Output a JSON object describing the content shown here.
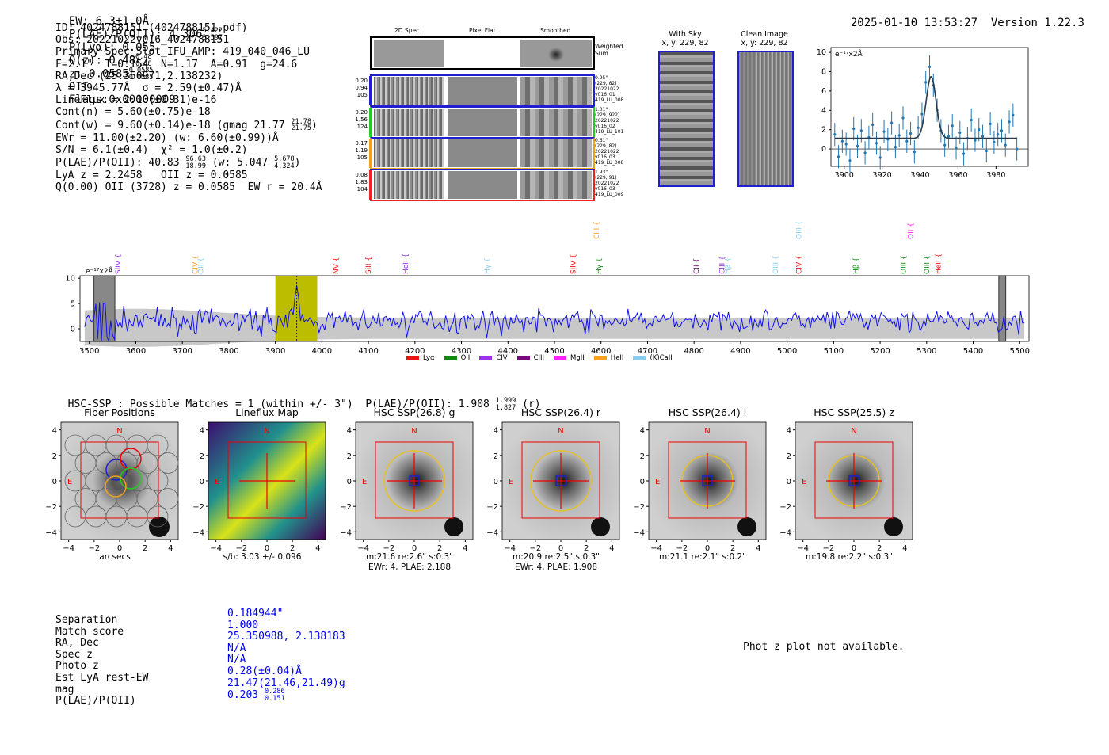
{
  "header": {
    "ew": "EW: 6.3±1.0Å",
    "plae_label": "P(LAE)/P(OII): 4.306",
    "plae_hi": "5.422",
    "plae_lo": "3.597",
    "plya": "P(Lyα): 0.055",
    "qz": "Q(z): 0.48",
    "qz_hi": "0.48",
    "qz_lo": "0.48",
    "z": "z: 0.0585",
    "z_hi": "0.0585",
    "z_lo": "0.0585",
    "z_line": "OII",
    "flags": "Flags:0x00000009",
    "datetime": "2025-01-10 13:53:27",
    "version": "Version 1.22.3"
  },
  "info": {
    "id": "ID: 4024788151 (4024788151.pdf)",
    "obs": "Obs: 20221022v016_4024788151",
    "primary": "Primary Spec_Slot_IFU_AMP: 419_040_046_LU",
    "fwhm": "F=2.1\"  T=0.154  N=1.17  A=0.91  g=24.6",
    "radec": "RA,Dec (25.350971,2.138232)",
    "lambda": "λ = 3945.77Å  σ = 2.59(±0.47)Å",
    "lineflux": "LineFlux = 2.10(±0.31)e-16",
    "contn": "Cont(n) = 5.60(±0.75)e-18",
    "contw": "Cont(w) = 9.60(±0.14)e-18 (gmag 21.77",
    "contw_hi": "21.78",
    "contw_lo": "21.75",
    "ewr": "EWr = 11.00(±2.20) (w: 6.60(±0.99))Å",
    "sn": "S/N = 6.1(±0.4)  χ² = 1.0(±0.2)",
    "plae": "P(LAE)/P(OII): 40.83",
    "plae_hi": "96.63",
    "plae_lo": "18.99",
    "plae_w": "(w: 5.047",
    "plae_w_hi": "5.678",
    "plae_w_lo": "4.324",
    "lya_z": "LyA z = 2.2458   OII z = 0.0585",
    "q": "Q(0.00) OII (3728) z = 0.0585  EW r = 20.4Å"
  },
  "cutouts": {
    "col_2d": "2D Spec",
    "col_flat": "Pixel Flat",
    "col_smooth": "Smoothed",
    "weighted_sum": "Weighted Sum",
    "rows": [
      {
        "left": [
          "0.20",
          "0.94",
          "105"
        ],
        "right": [
          "0.95\"",
          "(229, 82)",
          "20221022",
          "v016_01",
          "419_LU_008"
        ],
        "color": "#1f1fd0"
      },
      {
        "left": [
          "0.20",
          "1.56",
          "124"
        ],
        "right": [
          "1.01\"",
          "(229, 922)",
          "20221022",
          "v016_02",
          "419_LU_101"
        ],
        "color": "#22cc22"
      },
      {
        "left": [
          "0.17",
          "1.19",
          "105"
        ],
        "right": [
          "0.61\"",
          "(229, 82)",
          "20221022",
          "v016_03",
          "419_LU_008"
        ],
        "color": "#f0a020"
      },
      {
        "left": [
          "0.08",
          "1.83",
          "104"
        ],
        "right": [
          "1.93\"",
          "(229, 91)",
          "20221022",
          "v016_03",
          "419_LU_009"
        ],
        "color": "#ee2222"
      }
    ]
  },
  "with_sky": {
    "title": "With Sky",
    "coords": "x, y: 229, 82"
  },
  "clean_image": {
    "title": "Clean Image",
    "coords": "x, y: 229, 82"
  },
  "line_fit": {
    "unit": "e⁻¹⁷x2Å"
  },
  "spectrum": {
    "unit": "e⁻¹⁷x2Å"
  },
  "legend": [
    {
      "label": "Lyα",
      "color": "#ee1111"
    },
    {
      "label": "OII",
      "color": "#118811"
    },
    {
      "label": "CIV",
      "color": "#9933ee"
    },
    {
      "label": "CIII",
      "color": "#7a0a7a"
    },
    {
      "label": "MgII",
      "color": "#ff22ff"
    },
    {
      "label": "HeII",
      "color": "#ffa020"
    },
    {
      "label": "(K)CaII",
      "color": "#88ccf0"
    }
  ],
  "line_labels": [
    {
      "label": "SiIV",
      "wave": 3562,
      "color": "#9933ee",
      "high": false
    },
    {
      "label": "CIV",
      "wave": 3728,
      "color": "#ffa020",
      "high": false
    },
    {
      "label": "OII",
      "wave": 3740,
      "color": "#88ccf0",
      "high": false
    },
    {
      "label": "NV",
      "wave": 4030,
      "color": "#ee1111",
      "high": false
    },
    {
      "label": "SiII",
      "wave": 4100,
      "color": "#ee1111",
      "high": false
    },
    {
      "label": "HeII",
      "wave": 4180,
      "color": "#9933ee",
      "high": false
    },
    {
      "label": "Hγ",
      "wave": 4355,
      "color": "#88ccf0",
      "high": false
    },
    {
      "label": "SiIV",
      "wave": 4540,
      "color": "#ee1111",
      "high": false
    },
    {
      "label": "CIII",
      "wave": 4590,
      "color": "#ffa020",
      "high": true
    },
    {
      "label": "Hγ",
      "wave": 4595,
      "color": "#118811",
      "high": false
    },
    {
      "label": "CII",
      "wave": 4805,
      "color": "#7a0a7a",
      "high": false
    },
    {
      "label": "CIII",
      "wave": 4860,
      "color": "#9933ee",
      "high": false
    },
    {
      "label": "Hβ",
      "wave": 4872,
      "color": "#88ccf0",
      "high": false
    },
    {
      "label": "OIII",
      "wave": 4975,
      "color": "#88ccf0",
      "high": false
    },
    {
      "label": "OIII",
      "wave": 5025,
      "color": "#88ccf0",
      "high": true
    },
    {
      "label": "CIV",
      "wave": 5025,
      "color": "#ee1111",
      "high": false
    },
    {
      "label": "Hβ",
      "wave": 5148,
      "color": "#118811",
      "high": false
    },
    {
      "label": "OIII",
      "wave": 5250,
      "color": "#118811",
      "high": false
    },
    {
      "label": "OII",
      "wave": 5265,
      "color": "#ff22ff",
      "high": true
    },
    {
      "label": "OIII",
      "wave": 5300,
      "color": "#118811",
      "high": false
    },
    {
      "label": "HeII",
      "wave": 5325,
      "color": "#ee1111",
      "high": false
    }
  ],
  "hsc": {
    "summary": "HSC-SSP : Possible Matches = 1 (within +/- 3\")  P(LAE)/P(OII): 1.908",
    "summary_hi": "1.999",
    "summary_lo": "1.827",
    "summary_band": "(r)",
    "panels": [
      {
        "title": "Fiber Positions",
        "sub1": "arcsecs",
        "sub2": ""
      },
      {
        "title": "Lineflux Map",
        "sub1": "s/b: 3.03 +/- 0.096",
        "sub2": ""
      },
      {
        "title": "HSC SSP(26.8) g",
        "sub1": "m:21.6  re:2.6\"  s:0.3\"",
        "sub2": "EWr: 4, PLAE: 2.188"
      },
      {
        "title": "HSC SSP(26.4) r",
        "sub1": "m:20.9  re:2.5\"  s:0.3\"",
        "sub2": "EWr: 4, PLAE: 1.908"
      },
      {
        "title": "HSC SSP(26.4) i",
        "sub1": "m:21.1  re:2.1\"  s:0.2\"",
        "sub2": ""
      },
      {
        "title": "HSC SSP(25.5) z",
        "sub1": "m:19.8  re:2.2\"  s:0.3\"",
        "sub2": ""
      }
    ],
    "n_label": "N",
    "e_label": "E"
  },
  "match": {
    "labels": [
      "Separation",
      "Match score",
      "RA, Dec",
      "Spec z",
      "Photo z",
      "Est LyA rest-EW",
      "mag",
      "P(LAE)/P(OII)"
    ],
    "values": [
      "0.184944\"",
      "1.000",
      "25.350988, 2.138183",
      "N/A",
      "N/A",
      "0.28(±0.04)Å",
      "21.47(21.46,21.49)g",
      "0.203"
    ],
    "plae_hi": "0.286",
    "plae_lo": "0.151",
    "photz_msg": "Phot z plot not available."
  },
  "chart_data": [
    {
      "type": "scatter",
      "name": "line-fit",
      "title": "",
      "xlabel": "",
      "ylabel": "e⁻¹⁷x2Å",
      "xlim": [
        3893,
        3997
      ],
      "ylim": [
        -1.8,
        10.5
      ],
      "xticks": [
        3900,
        3920,
        3940,
        3960,
        3980
      ],
      "yticks": [
        0,
        2,
        4,
        6,
        8,
        10
      ],
      "x": [
        3895,
        3897,
        3899,
        3901,
        3903,
        3905,
        3907,
        3909,
        3911,
        3913,
        3915,
        3917,
        3919,
        3921,
        3923,
        3925,
        3927,
        3929,
        3931,
        3933,
        3935,
        3937,
        3939,
        3941,
        3943,
        3945,
        3947,
        3949,
        3951,
        3953,
        3955,
        3957,
        3959,
        3961,
        3963,
        3965,
        3967,
        3969,
        3971,
        3973,
        3975,
        3977,
        3979,
        3981,
        3983,
        3985,
        3987,
        3989,
        3991
      ],
      "y": [
        1.5,
        -0.8,
        0.8,
        0.5,
        -1.2,
        2.1,
        0.3,
        1.9,
        -0.4,
        1.2,
        2.5,
        0.6,
        -0.9,
        1.8,
        1.0,
        2.7,
        0.2,
        1.4,
        3.2,
        0.8,
        1.6,
        -0.3,
        2.2,
        3.6,
        6.9,
        8.5,
        6.6,
        4.0,
        1.9,
        0.4,
        1.3,
        2.4,
        0.1,
        1.7,
        -0.5,
        1.1,
        3.0,
        0.9,
        2.0,
        1.3,
        -0.2,
        2.6,
        0.7,
        1.5,
        1.9,
        0.4,
        2.8,
        3.5,
        0.0
      ],
      "err": 1.2,
      "model": {
        "continuum": 1.1,
        "amplitude": 6.4,
        "center": 3945.8,
        "sigma": 2.6
      }
    },
    {
      "type": "line",
      "name": "spectrum",
      "xlim": [
        3480,
        5520
      ],
      "ylim": [
        -2.5,
        10.5
      ],
      "xticks": [
        3500,
        3600,
        3700,
        3800,
        3900,
        4000,
        4100,
        4200,
        4300,
        4400,
        4500,
        4600,
        4700,
        4800,
        4900,
        5000,
        5100,
        5200,
        5300,
        5400,
        5500
      ],
      "yticks": [
        0,
        5,
        10
      ],
      "ylabel": "e⁻¹⁷x2Å",
      "highlight": [
        3900,
        3990
      ],
      "line_center": 3946,
      "masked": [
        [
          3510,
          3555
        ],
        [
          5455,
          5470
        ]
      ],
      "sampling": 4,
      "noise_level": 2.2
    }
  ]
}
